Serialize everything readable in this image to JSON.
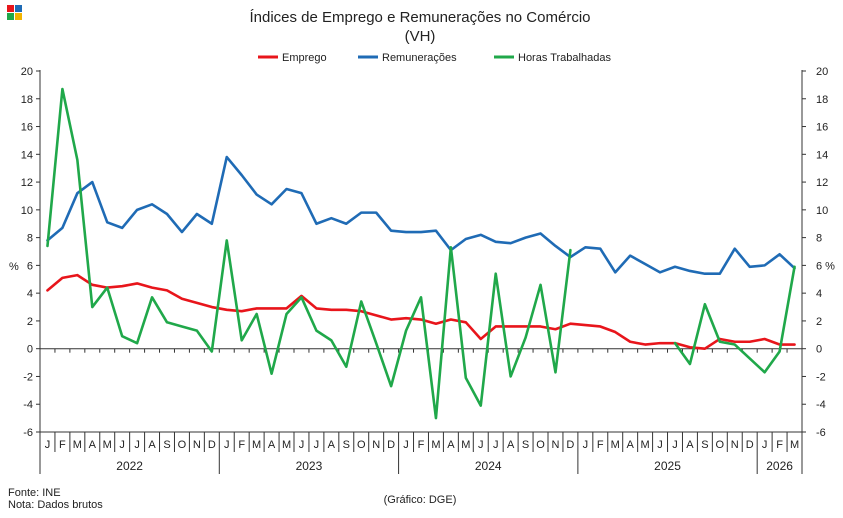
{
  "chart_data": {
    "type": "line",
    "title": "Índices de Emprego e Remunerações no Comércio",
    "subtitle": "(VH)",
    "ylabel_left": "%",
    "ylabel_right": "%",
    "ylim": [
      -6,
      20
    ],
    "yticks": [
      20,
      18,
      16,
      14,
      12,
      10,
      8,
      6,
      4,
      2,
      0,
      -2,
      -4,
      -6
    ],
    "right_tick_labels": [
      "20",
      "18",
      "16",
      "14",
      "12",
      "10",
      "8",
      "6 %",
      "4",
      "2",
      "0",
      "-2",
      "-4",
      "-6"
    ],
    "grid": false,
    "legend_position": "top",
    "x": [
      "J",
      "F",
      "M",
      "A",
      "M",
      "J",
      "J",
      "A",
      "S",
      "O",
      "N",
      "D",
      "J",
      "F",
      "M",
      "A",
      "M",
      "J",
      "J",
      "A",
      "S",
      "O",
      "N",
      "D",
      "J",
      "F",
      "M",
      "A",
      "M",
      "J",
      "J",
      "A",
      "S",
      "O",
      "N",
      "D",
      "J",
      "F",
      "M",
      "A",
      "M",
      "J",
      "J",
      "A",
      "S",
      "O",
      "N",
      "D",
      "J",
      "F",
      "M"
    ],
    "years": [
      {
        "label": "2022",
        "start": 0,
        "end": 11
      },
      {
        "label": "2023",
        "start": 12,
        "end": 23
      },
      {
        "label": "2024",
        "start": 24,
        "end": 35
      },
      {
        "label": "2025",
        "start": 36,
        "end": 47
      },
      {
        "label": "2026",
        "start": 48,
        "end": 50
      }
    ],
    "series": [
      {
        "name": "Emprego",
        "color": "#e8151b",
        "values": [
          4.2,
          5.1,
          5.3,
          4.6,
          4.4,
          4.5,
          4.7,
          4.4,
          4.2,
          3.6,
          3.3,
          3.0,
          2.8,
          2.7,
          2.9,
          2.9,
          2.9,
          3.8,
          2.9,
          2.8,
          2.8,
          2.7,
          2.4,
          2.1,
          2.2,
          2.1,
          1.8,
          2.1,
          1.9,
          0.7,
          1.6,
          1.6,
          1.6,
          1.6,
          1.4,
          1.8,
          1.7,
          1.6,
          1.2,
          0.5,
          0.3,
          0.4,
          0.4,
          0.1,
          0.0,
          0.7,
          0.5,
          0.5,
          0.7,
          0.3,
          0.3
        ]
      },
      {
        "name": "Remunerações",
        "color": "#1f6bb5",
        "values": [
          7.8,
          8.7,
          11.2,
          12.0,
          9.1,
          8.7,
          10.0,
          10.4,
          9.7,
          8.4,
          9.7,
          9.0,
          13.8,
          12.5,
          11.1,
          10.4,
          11.5,
          11.2,
          9.0,
          9.4,
          9.0,
          9.8,
          9.8,
          8.5,
          8.4,
          8.4,
          8.5,
          7.1,
          7.9,
          8.2,
          7.7,
          7.6,
          8.0,
          8.3,
          7.4,
          6.6,
          7.3,
          7.2,
          5.5,
          6.7,
          6.1,
          5.5,
          5.9,
          5.6,
          5.4,
          5.4,
          7.2,
          5.9,
          6.0,
          6.8,
          5.8
        ]
      },
      {
        "name": "Horas Trabalhadas",
        "color": "#20a84a",
        "values": [
          7.4,
          18.7,
          13.6,
          3.0,
          4.4,
          0.9,
          0.4,
          3.7,
          1.9,
          1.6,
          1.3,
          -0.2,
          7.8,
          0.6,
          2.5,
          -1.8,
          2.5,
          3.7,
          1.3,
          0.6,
          -1.3,
          3.4,
          0.4,
          -2.7,
          1.3,
          3.7,
          -5.0,
          7.3,
          -2.1,
          -4.1,
          5.4,
          -2.0,
          0.8,
          4.6,
          -1.7,
          7.1,
          null,
          null,
          null,
          null,
          null,
          null,
          0.4,
          -1.1,
          3.2,
          0.5,
          0.3,
          -0.7,
          -1.7,
          -0.2,
          5.9
        ]
      }
    ]
  },
  "source_label": "Fonte: INE",
  "note_label": "Nota: Dados brutos",
  "credit_label": "(Gráfico: DGE)",
  "logo_colors": [
    "#e8151b",
    "#1f6bb5",
    "#20a84a",
    "#f2b400"
  ]
}
